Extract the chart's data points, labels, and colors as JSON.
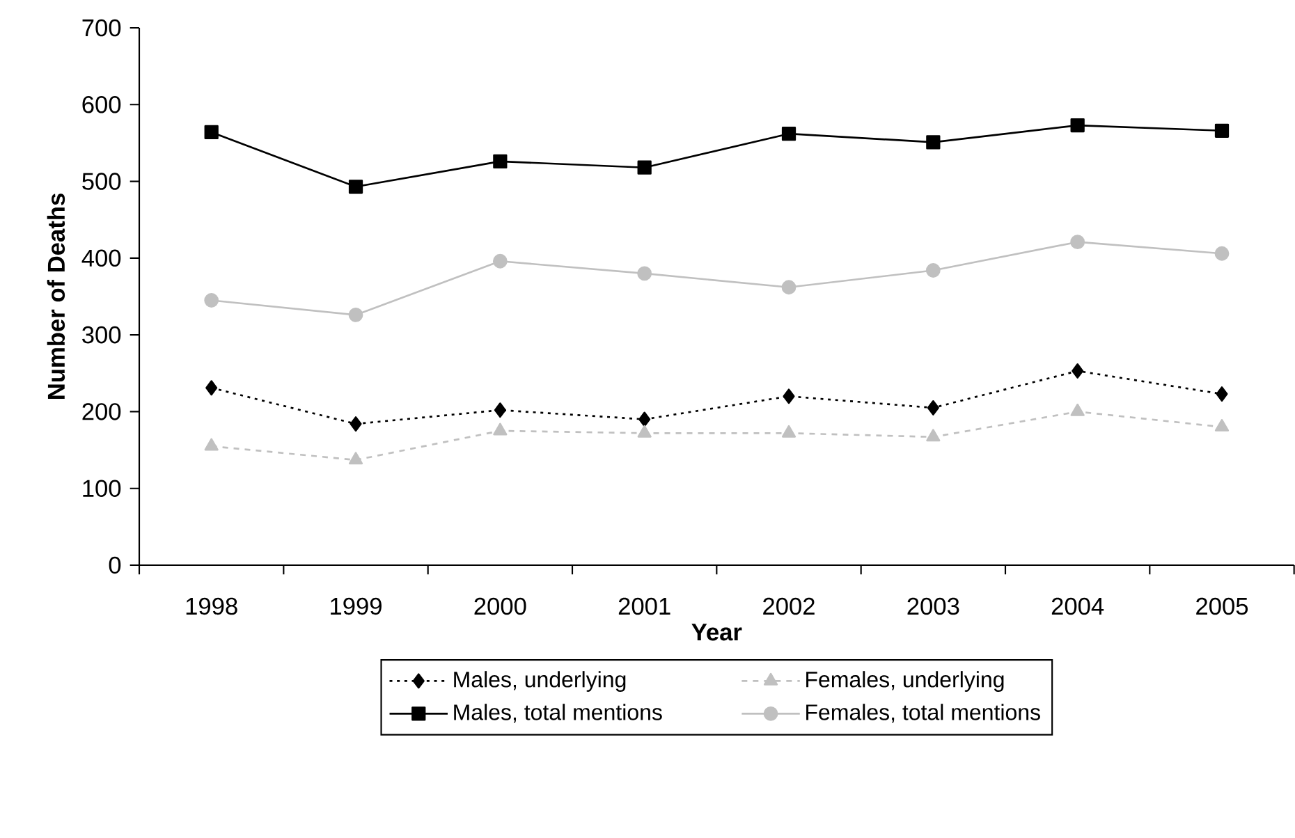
{
  "chart_data": {
    "type": "line",
    "xlabel": "Year",
    "ylabel": "Number of Deaths",
    "categories": [
      "1998",
      "1999",
      "2000",
      "2001",
      "2002",
      "2003",
      "2004",
      "2005"
    ],
    "ylim": [
      0,
      700
    ],
    "yticks": [
      0,
      100,
      200,
      300,
      400,
      500,
      600,
      700
    ],
    "legend": "bottom",
    "series": [
      {
        "name": "Males, underlying",
        "color": "#000000",
        "marker": "diamond",
        "line_style": "dotted",
        "values": [
          231,
          184,
          202,
          190,
          220,
          205,
          253,
          223
        ]
      },
      {
        "name": "Females, underlying",
        "color": "#c0c0c0",
        "marker": "triangle",
        "line_style": "dashed",
        "values": [
          155,
          137,
          175,
          172,
          172,
          167,
          200,
          180
        ]
      },
      {
        "name": "Males, total mentions",
        "color": "#000000",
        "marker": "square",
        "line_style": "solid",
        "values": [
          564,
          493,
          526,
          518,
          562,
          551,
          573,
          566
        ]
      },
      {
        "name": "Females, total mentions",
        "color": "#c0c0c0",
        "marker": "circle",
        "line_style": "solid",
        "values": [
          345,
          326,
          396,
          380,
          362,
          384,
          421,
          406
        ]
      }
    ]
  }
}
